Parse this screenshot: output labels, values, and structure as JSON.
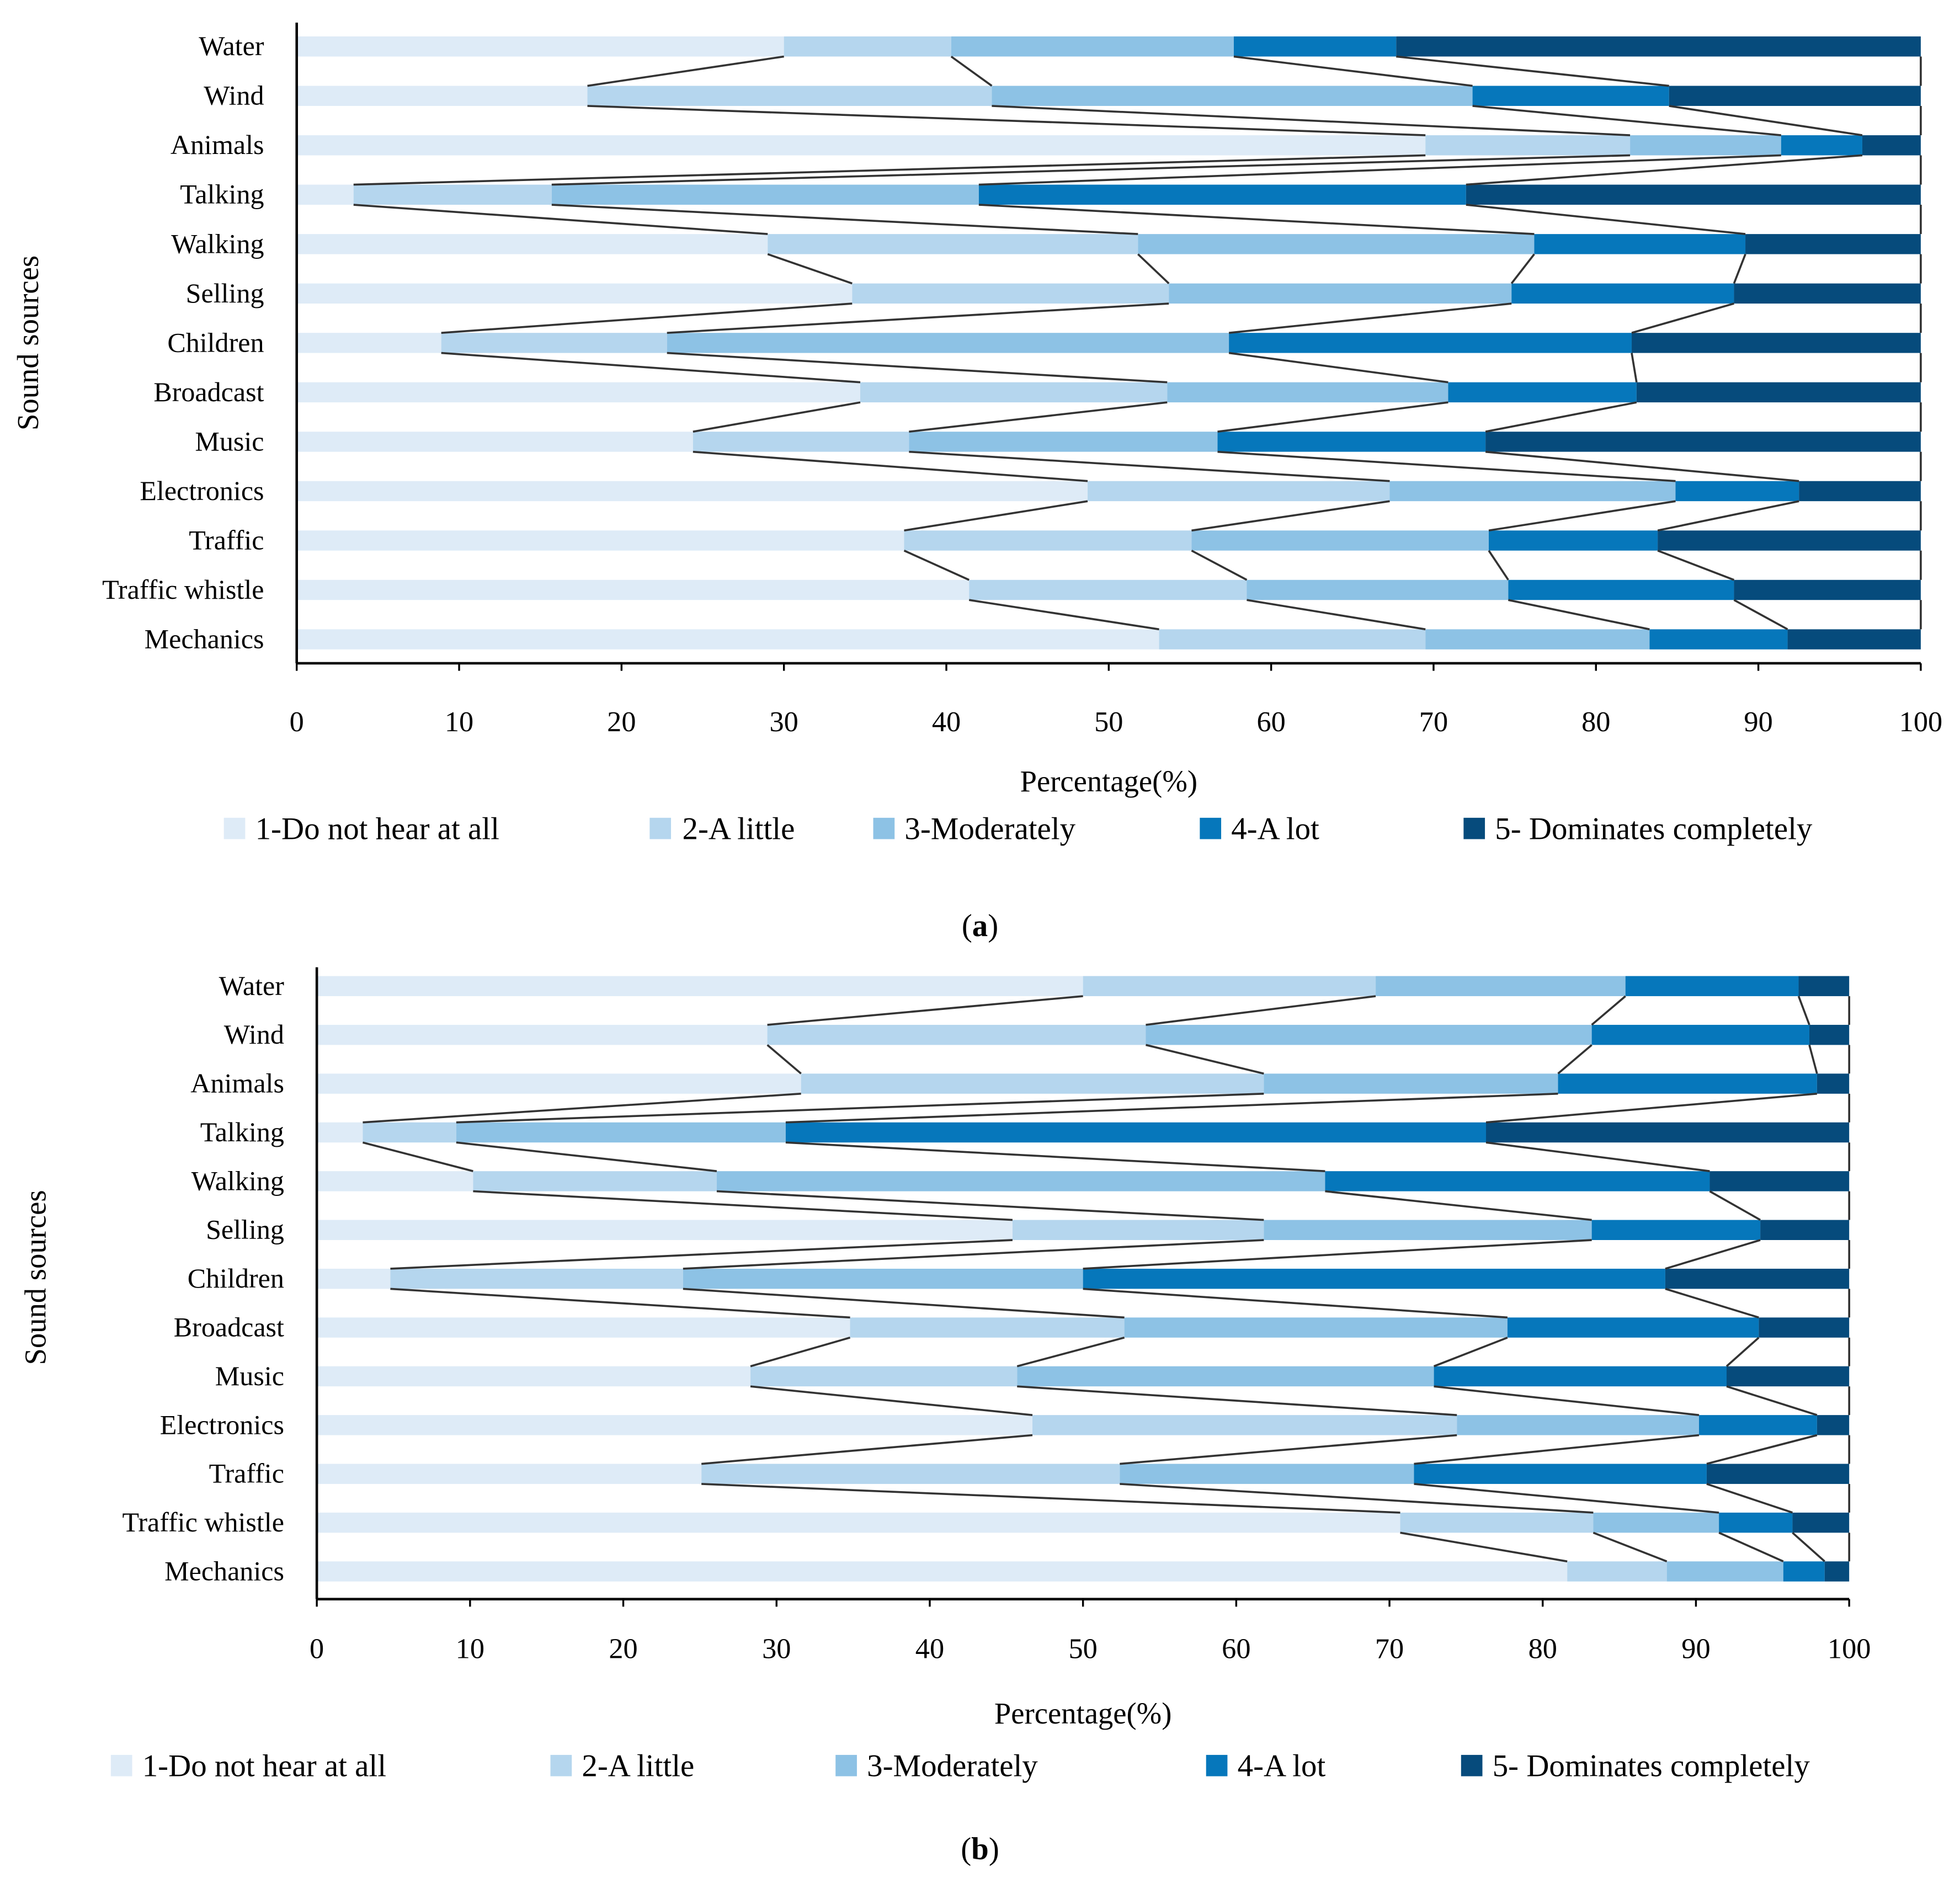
{
  "colors": [
    "#deebf7",
    "#b5d6ee",
    "#8dc2e5",
    "#0677bb",
    "#064b7c"
  ],
  "chart_data": [
    {
      "type": "bar",
      "stacked": true,
      "orientation": "horizontal",
      "caption": "(a)",
      "caption_letter": "a",
      "xlabel": "Percentage(%)",
      "ylabel": "Sound sources",
      "xlim": [
        0,
        100
      ],
      "xticks": [
        "0",
        "10",
        "20",
        "30",
        "40",
        "50",
        "60",
        "70",
        "80",
        "90",
        "100"
      ],
      "legend_position": "bottom",
      "categories": [
        "Water",
        "Wind",
        "Animals",
        "Talking",
        "Walking",
        "Selling",
        "Children",
        "Broadcast",
        "Music",
        "Electronics",
        "Traffic",
        "Traffic whistle",
        "Mechanics"
      ],
      "series": [
        {
          "name": "1-Do not hear at all",
          "values": [
            30.0,
            17.9,
            69.5,
            3.5,
            29.0,
            34.2,
            8.9,
            34.7,
            24.4,
            48.7,
            37.4,
            41.4,
            53.1
          ]
        },
        {
          "name": "2-A little",
          "values": [
            10.3,
            24.9,
            12.6,
            12.2,
            22.8,
            19.5,
            13.9,
            18.9,
            13.3,
            18.6,
            17.7,
            17.1,
            16.4
          ]
        },
        {
          "name": "3-Moderately",
          "values": [
            17.4,
            29.6,
            9.3,
            26.3,
            24.4,
            21.1,
            34.6,
            17.3,
            19.0,
            17.6,
            18.3,
            16.1,
            13.8
          ]
        },
        {
          "name": "4-A lot",
          "values": [
            10.0,
            12.1,
            5.0,
            30.0,
            13.0,
            13.7,
            24.8,
            11.6,
            16.5,
            7.6,
            10.4,
            13.9,
            8.5
          ]
        },
        {
          "name": "5- Dominates completely",
          "values": [
            32.3,
            15.5,
            3.6,
            28.0,
            10.8,
            11.5,
            17.8,
            17.5,
            26.8,
            7.5,
            16.2,
            11.5,
            8.2
          ]
        }
      ]
    },
    {
      "type": "bar",
      "stacked": true,
      "orientation": "horizontal",
      "caption": "(b)",
      "caption_letter": "b",
      "xlabel": "Percentage(%)",
      "ylabel": "Sound sources",
      "xlim": [
        0,
        100
      ],
      "xticks": [
        "0",
        "10",
        "20",
        "30",
        "40",
        "50",
        "60",
        "70",
        "80",
        "90",
        "100"
      ],
      "legend_position": "bottom",
      "categories": [
        "Water",
        "Wind",
        "Animals",
        "Talking",
        "Walking",
        "Selling",
        "Children",
        "Broadcast",
        "Music",
        "Electronics",
        "Traffic",
        "Traffic whistle",
        "Mechanics"
      ],
      "series": [
        {
          "name": "1-Do not hear at all",
          "values": [
            50.0,
            29.4,
            31.6,
            3.0,
            10.2,
            45.4,
            4.8,
            34.8,
            28.3,
            46.7,
            25.1,
            70.7,
            81.6
          ]
        },
        {
          "name": "2-A little",
          "values": [
            19.1,
            24.7,
            30.2,
            6.1,
            15.9,
            16.4,
            19.1,
            17.9,
            17.4,
            27.7,
            27.3,
            12.6,
            6.5
          ]
        },
        {
          "name": "3-Moderately",
          "values": [
            16.3,
            29.1,
            19.2,
            21.5,
            39.7,
            21.4,
            26.1,
            25.0,
            27.2,
            15.8,
            19.2,
            8.2,
            7.6
          ]
        },
        {
          "name": "4-A lot",
          "values": [
            11.3,
            14.2,
            16.9,
            45.7,
            25.1,
            11.0,
            38.0,
            16.4,
            19.1,
            7.7,
            19.1,
            4.8,
            2.7
          ]
        },
        {
          "name": "5- Dominates completely",
          "values": [
            3.3,
            2.6,
            2.1,
            23.7,
            9.1,
            5.8,
            12.0,
            5.9,
            8.0,
            2.1,
            9.3,
            3.7,
            1.6
          ]
        }
      ]
    }
  ]
}
